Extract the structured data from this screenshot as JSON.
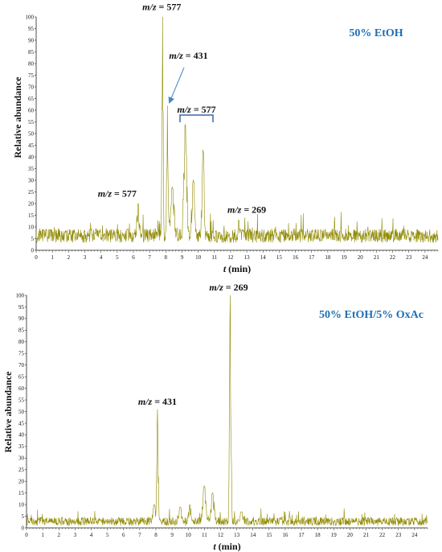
{
  "colors": {
    "trace": "#8f8a00",
    "axis": "#222222",
    "panel_label": "#1f6fb6",
    "arrow": "#4a86c5",
    "bracket": "#3a66b0"
  },
  "chart_data": [
    {
      "type": "line",
      "panel_label": "50% EtOH",
      "xlabel": "t (min)",
      "ylabel": "Relative abundance",
      "xlim": [
        0,
        24.8
      ],
      "ylim": [
        0,
        100
      ],
      "x_ticks": [
        "0",
        "1",
        "2",
        "3",
        "4",
        "5",
        "6",
        "7",
        "8",
        "9",
        "10",
        "11",
        "12",
        "13",
        "14",
        "15",
        "16",
        "17",
        "18",
        "19",
        "20",
        "21",
        "22",
        "23",
        "24"
      ],
      "y_ticks": [
        "0",
        "5",
        "10",
        "15",
        "20",
        "25",
        "30",
        "35",
        "40",
        "45",
        "50",
        "55",
        "60",
        "65",
        "70",
        "75",
        "80",
        "85",
        "90",
        "95",
        "100"
      ],
      "baseline": 5,
      "noise": 5,
      "peaks": [
        {
          "x": 6.3,
          "y": 20,
          "width": 0.25
        },
        {
          "x": 7.8,
          "y": 100,
          "width": 0.1
        },
        {
          "x": 8.1,
          "y": 62,
          "width": 0.12
        },
        {
          "x": 8.4,
          "y": 27,
          "width": 0.35
        },
        {
          "x": 9.2,
          "y": 54,
          "width": 0.25
        },
        {
          "x": 9.7,
          "y": 30,
          "width": 0.3
        },
        {
          "x": 10.3,
          "y": 43,
          "width": 0.2
        },
        {
          "x": 12.5,
          "y": 13,
          "width": 0.2
        }
      ],
      "annotations": [
        {
          "mz": "m/z",
          "value": "= 577",
          "x": 7.75,
          "y": 103
        },
        {
          "mz": "m/z",
          "value": "= 431",
          "x": 9.4,
          "y": 82
        },
        {
          "mz": "m/z",
          "value": "= 577",
          "x": 9.9,
          "y": 59
        },
        {
          "mz": "m/z",
          "value": "= 577",
          "x": 5.0,
          "y": 23
        },
        {
          "mz": "m/z",
          "value": "= 269",
          "x": 13.0,
          "y": 16
        }
      ]
    },
    {
      "type": "line",
      "panel_label": "50% EtOH/5% OxAc",
      "xlabel": "t (min)",
      "ylabel": "Relative abundance",
      "xlim": [
        0,
        24.8
      ],
      "ylim": [
        0,
        100
      ],
      "x_ticks": [
        "0",
        "1",
        "2",
        "3",
        "4",
        "5",
        "6",
        "7",
        "8",
        "9",
        "10",
        "11",
        "12",
        "13",
        "14",
        "15",
        "16",
        "17",
        "18",
        "19",
        "20",
        "21",
        "22",
        "23",
        "24"
      ],
      "y_ticks": [
        "0",
        "5",
        "10",
        "15",
        "20",
        "25",
        "30",
        "35",
        "40",
        "45",
        "50",
        "55",
        "60",
        "65",
        "70",
        "75",
        "80",
        "85",
        "90",
        "95",
        "100"
      ],
      "baseline": 2,
      "noise": 3,
      "peaks": [
        {
          "x": 7.9,
          "y": 10,
          "width": 0.3
        },
        {
          "x": 8.1,
          "y": 51,
          "width": 0.12
        },
        {
          "x": 9.5,
          "y": 9,
          "width": 0.3
        },
        {
          "x": 10.1,
          "y": 10,
          "width": 0.25
        },
        {
          "x": 11.0,
          "y": 18,
          "width": 0.3
        },
        {
          "x": 11.5,
          "y": 15,
          "width": 0.3
        },
        {
          "x": 12.6,
          "y": 100,
          "width": 0.12
        },
        {
          "x": 13.3,
          "y": 7,
          "width": 0.35
        }
      ],
      "annotations": [
        {
          "mz": "m/z",
          "value": "= 431",
          "x": 8.1,
          "y": 53
        },
        {
          "mz": "m/z",
          "value": "= 269",
          "x": 12.5,
          "y": 102
        }
      ]
    }
  ]
}
